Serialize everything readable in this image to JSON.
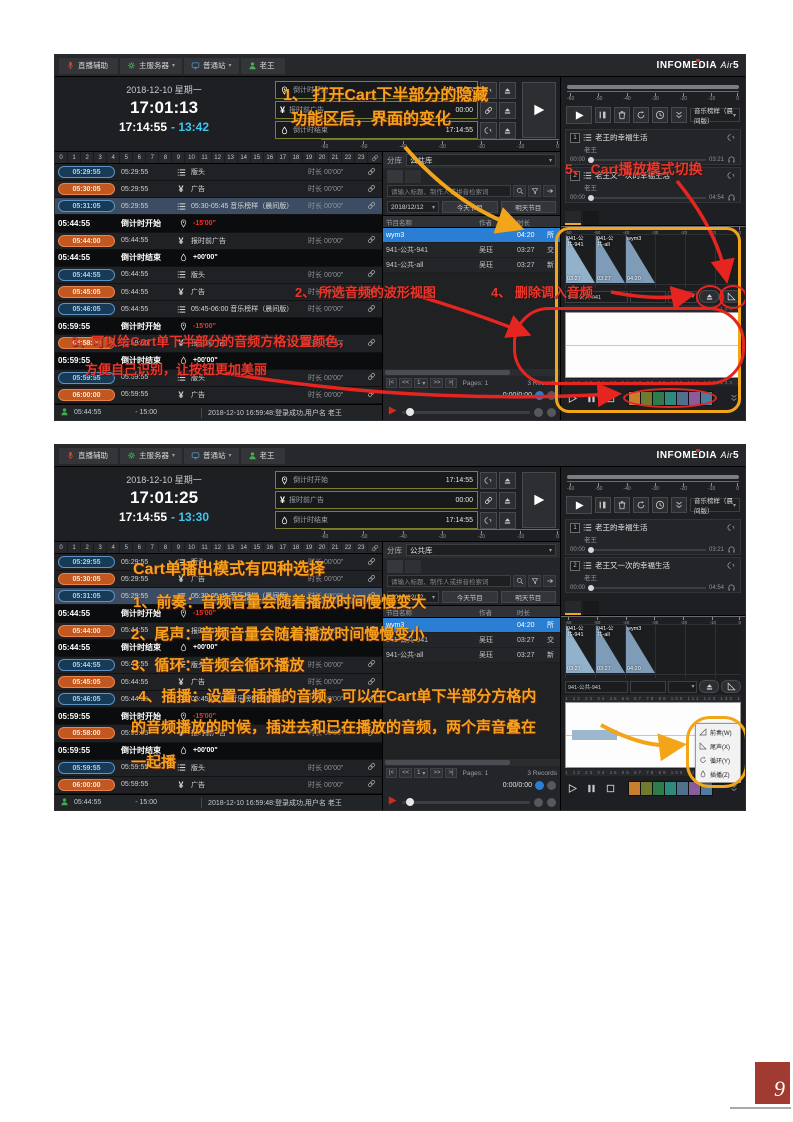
{
  "page": {
    "number": "9"
  },
  "shared": {
    "ui": {
      "caret": "▾"
    },
    "topbar": {
      "brand_main": "INFOMEDIA",
      "brand_sub": "Air",
      "brand_ver": "5",
      "buttons": [
        {
          "label": "直播辅助",
          "icon": "mic",
          "tint": "ic-red",
          "caret": ""
        },
        {
          "label": "主服务器",
          "icon": "gear",
          "tint": "ic-green",
          "caret": "▾"
        },
        {
          "label": "普通站",
          "icon": "monitor",
          "tint": "ic-blue",
          "caret": "▾"
        },
        {
          "label": "老王",
          "icon": "user",
          "tint": "ic-green",
          "caret": ""
        }
      ]
    },
    "header": {
      "date": "2018-12-10 星期一",
      "fields": [
        {
          "icon": "pin",
          "label": "倒计时开始",
          "value": "17:14:55",
          "side": "unlink"
        },
        {
          "icon": "yen",
          "label": "报时前广告",
          "value": "00:00",
          "side": "link"
        },
        {
          "icon": "drop",
          "label": "倒计时结束",
          "value": "17:14:55",
          "side": "unlink"
        }
      ]
    },
    "meter_ticks": [
      "-60",
      "-50",
      "-40",
      "-30",
      "-20",
      "-10",
      "0"
    ],
    "hours": [
      "0",
      "1",
      "2",
      "3",
      "4",
      "5",
      "6",
      "7",
      "8",
      "9",
      "10",
      "11",
      "12",
      "13",
      "14",
      "15",
      "16",
      "17",
      "18",
      "19",
      "20",
      "21",
      "22",
      "23"
    ],
    "playlist": [
      {
        "badge": "05:29:55",
        "color": "blue",
        "time": "05:29:55",
        "icon": "list",
        "title": "版头",
        "len": "时长 00'00\""
      },
      {
        "badge": "05:30:05",
        "color": "orange",
        "time": "05:29:55",
        "icon": "yen",
        "title": "广告",
        "len": "时长 00'00\""
      },
      {
        "badge": "05:31:05",
        "color": "blue",
        "selected": true,
        "time": "05:29:55",
        "icon": "list",
        "title": "05:30-05:45 音乐榜样（晨间版）",
        "len": "时长 00'00\""
      },
      {
        "type": "marker",
        "time": "05:44:55",
        "label": "倒计时开始",
        "icon": "pin",
        "value": "-15'00\"",
        "vcolor": "red"
      },
      {
        "badge": "05:44:00",
        "color": "orange",
        "time": "05:44:55",
        "icon": "yen",
        "title": "报时前广告",
        "len": "时长 00'00\""
      },
      {
        "type": "marker",
        "time": "05:44:55",
        "label": "倒计时结束",
        "icon": "drop",
        "value": "+00'00\"",
        "vcolor": "white"
      },
      {
        "badge": "05:44:55",
        "color": "blue",
        "time": "05:44:55",
        "icon": "list",
        "title": "版头",
        "len": "时长 00'00\""
      },
      {
        "badge": "05:45:05",
        "color": "orange",
        "time": "05:44:55",
        "icon": "yen",
        "title": "广告",
        "len": "时长 00'00\""
      },
      {
        "badge": "05:46:05",
        "color": "blue",
        "time": "05:44:55",
        "icon": "list",
        "title": "05:45-06:00 音乐榜样（晨间版）",
        "len": "时长 00'00\""
      },
      {
        "type": "marker",
        "time": "05:59:55",
        "label": "倒计时开始",
        "icon": "pin",
        "value": "-15'00\"",
        "vcolor": "red"
      },
      {
        "badge": "05:58:00",
        "color": "orange",
        "time": "05:59:55",
        "icon": "yen",
        "title": "报时前广告",
        "len": "时长 00'00\""
      },
      {
        "type": "marker",
        "time": "05:59:55",
        "label": "倒计时结束",
        "icon": "drop",
        "value": "+00'00\"",
        "vcolor": "white"
      },
      {
        "badge": "05:59:55",
        "color": "blue",
        "time": "05:59:55",
        "icon": "list",
        "title": "版头",
        "len": "时长 00'00\""
      },
      {
        "badge": "06:00:00",
        "color": "orange",
        "time": "05:59:55",
        "icon": "yen",
        "title": "广告",
        "len": "时长 00'00\""
      }
    ],
    "status": {
      "time": "05:44:55",
      "offset": "- 15:00",
      "message": "2018-12-10 16:59:48:登录成功,用户名 老王"
    },
    "library": {
      "group_label": "分库",
      "group_value": "公共库",
      "tabs": [
        {
          "label": "节目",
          "selected": true
        },
        {
          "label": "歌曲"
        }
      ],
      "search_placeholder": "请输入标题、制作人或拼音检索词",
      "date": "2018/12/12",
      "today_btn": "今天节目",
      "tomorrow_btn": "明天节目",
      "columns": {
        "name": "节目名称",
        "author": "作者",
        "dur": "时长"
      },
      "rows": [
        {
          "name": "wym3",
          "author": "",
          "dur": "04:20",
          "extra": "所",
          "selected": true
        },
        {
          "name": "941-公共-941",
          "author": "吴珏",
          "dur": "03:27",
          "extra": "交"
        },
        {
          "name": "941-公共-all",
          "author": "吴珏",
          "dur": "03:27",
          "extra": "新"
        }
      ],
      "pager": {
        "first": "|<",
        "prev": "<<",
        "page": "1",
        "next": ">>",
        "last": ">|",
        "pages": "Pages: 1",
        "records": "3 Records"
      },
      "player_time": "0:00/0:00"
    },
    "cart": {
      "dropdown": "音乐榜样（晨间版）",
      "items": [
        {
          "num": "1",
          "title": "老王的幸福生活",
          "author": "老王",
          "start": "00:00",
          "end": "03:21"
        },
        {
          "num": "2",
          "title": "老王又一次的幸福生活",
          "author": "老王",
          "start": "00:00",
          "end": "04:54"
        }
      ],
      "tabs": [
        {
          "label": "老王的Cart",
          "selected": true
        },
        {
          "label": "老王的Cart2"
        }
      ],
      "cells": [
        {
          "l1": "941-公",
          "l2": "共-941",
          "dur": "03:27",
          "selected": true
        },
        {
          "l1": "941-公",
          "l2": "共-all",
          "dur": "03:27"
        },
        {
          "l1": "wym3",
          "l2": "",
          "dur": "04:20"
        }
      ],
      "field_value": "941-公共-941",
      "ruler_numbers": "1 12 23 34 45 56 67 78 89 100 111 123 133 144 155 166 177 188 199",
      "palette": [
        "#c87e2f",
        "#6f7c2d",
        "#2d7c4b",
        "#2d8a7c",
        "#4f6f8c",
        "#8a5c9c",
        "#4f7c9c"
      ]
    }
  },
  "shot1": {
    "clock": {
      "time": "17:01:13",
      "end": "17:14:55",
      "remain": "- 13:42"
    },
    "ann": {
      "a1_line1": "1、 打开Cart下半部分的隐藏",
      "a1_line2": "功能区后，界面的变化",
      "a2": "2、 所选音频的波形视图",
      "a3_line1": "3、可以给Cart单下半部分的音频方格设置颜色，",
      "a3_line2": "方便自己识别，让按钮更加美丽",
      "a4": "4、 删除调入音频",
      "a5": "5、 Cart播放模式切换"
    }
  },
  "shot2": {
    "clock": {
      "time": "17:01:25",
      "end": "17:14:55",
      "remain": "- 13:30"
    },
    "ann": {
      "t0": "Cart单播出模式有四种选择",
      "t1": "1、前奏：音频音量会随着播放时间慢慢变大",
      "t2": "2、尾声：音频音量会随着播放时间慢慢变小",
      "t3": "3、循环：音频会循环播放",
      "t4a": "4、插播：设置了插播的音频，可以在Cart单下半部分方格内",
      "t4b": "的音频播放的时候，插进去和已在播放的音频，两个声音叠在",
      "t4c": "一起播"
    },
    "menu": {
      "items": [
        {
          "icon": "fadein",
          "label": "前奏(W)"
        },
        {
          "icon": "fadeout",
          "label": "尾声(X)"
        },
        {
          "icon": "loop",
          "label": "循环(Y)"
        },
        {
          "icon": "drop",
          "label": "插播(Z)"
        }
      ]
    }
  }
}
